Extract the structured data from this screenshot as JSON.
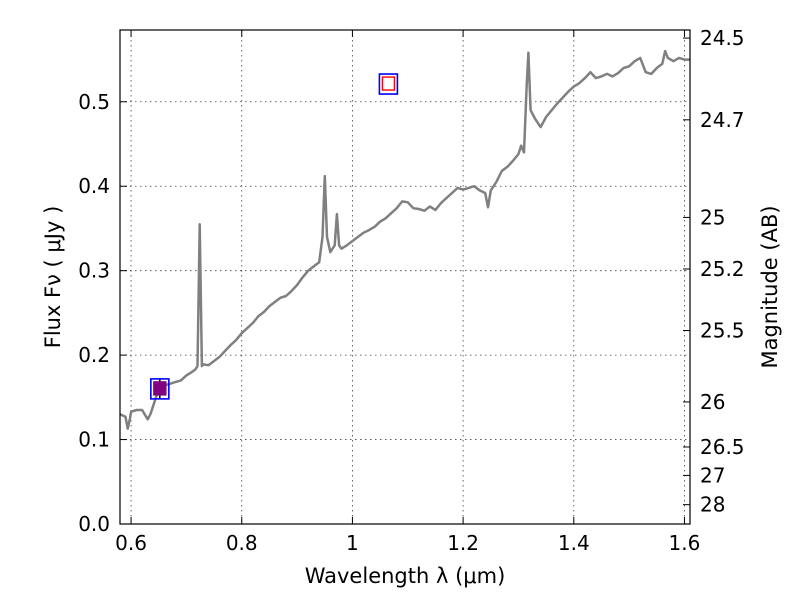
{
  "chart_data": {
    "type": "line",
    "xlabel": "Wavelength  λ (μm)",
    "ylabel": "Flux  Fν  ( μJy )",
    "ylabel_right": "Magnitude (AB)",
    "xlim": [
      0.58,
      1.61
    ],
    "ylim": [
      0.0,
      0.585
    ],
    "grid": true,
    "x_ticks": [
      {
        "value": 0.6,
        "label": "0.6"
      },
      {
        "value": 0.8,
        "label": "0.8"
      },
      {
        "value": 1.0,
        "label": "1"
      },
      {
        "value": 1.2,
        "label": "1.2"
      },
      {
        "value": 1.4,
        "label": "1.4"
      },
      {
        "value": 1.6,
        "label": "1.6"
      }
    ],
    "y_ticks": [
      {
        "value": 0.0,
        "label": "0.0"
      },
      {
        "value": 0.1,
        "label": "0.1"
      },
      {
        "value": 0.2,
        "label": "0.2"
      },
      {
        "value": 0.3,
        "label": "0.3"
      },
      {
        "value": 0.4,
        "label": "0.4"
      },
      {
        "value": 0.5,
        "label": "0.5"
      }
    ],
    "right_ticks": [
      {
        "mag": 24.5,
        "label": "24.5"
      },
      {
        "mag": 24.7,
        "label": "24.7"
      },
      {
        "mag": 25.0,
        "label": "25"
      },
      {
        "mag": 25.2,
        "label": "25.2"
      },
      {
        "mag": 25.5,
        "label": "25.5"
      },
      {
        "mag": 26.0,
        "label": "26"
      },
      {
        "mag": 26.5,
        "label": "26.5"
      },
      {
        "mag": 27.0,
        "label": "27"
      },
      {
        "mag": 28.0,
        "label": "28"
      }
    ],
    "series": [
      {
        "color": "#808080",
        "points": [
          [
            0.58,
            0.13
          ],
          [
            0.59,
            0.127
          ],
          [
            0.594,
            0.113
          ],
          [
            0.598,
            0.125
          ],
          [
            0.6,
            0.133
          ],
          [
            0.61,
            0.135
          ],
          [
            0.62,
            0.135
          ],
          [
            0.63,
            0.124
          ],
          [
            0.635,
            0.13
          ],
          [
            0.64,
            0.14
          ],
          [
            0.65,
            0.16
          ],
          [
            0.66,
            0.164
          ],
          [
            0.67,
            0.166
          ],
          [
            0.68,
            0.168
          ],
          [
            0.69,
            0.17
          ],
          [
            0.7,
            0.176
          ],
          [
            0.71,
            0.18
          ],
          [
            0.716,
            0.183
          ],
          [
            0.72,
            0.187
          ],
          [
            0.724,
            0.355
          ],
          [
            0.728,
            0.187
          ],
          [
            0.73,
            0.189
          ],
          [
            0.74,
            0.188
          ],
          [
            0.75,
            0.193
          ],
          [
            0.76,
            0.198
          ],
          [
            0.77,
            0.205
          ],
          [
            0.78,
            0.212
          ],
          [
            0.79,
            0.218
          ],
          [
            0.8,
            0.226
          ],
          [
            0.81,
            0.232
          ],
          [
            0.82,
            0.238
          ],
          [
            0.83,
            0.246
          ],
          [
            0.84,
            0.251
          ],
          [
            0.85,
            0.258
          ],
          [
            0.86,
            0.263
          ],
          [
            0.87,
            0.268
          ],
          [
            0.88,
            0.27
          ],
          [
            0.89,
            0.276
          ],
          [
            0.9,
            0.283
          ],
          [
            0.91,
            0.292
          ],
          [
            0.92,
            0.3
          ],
          [
            0.93,
            0.305
          ],
          [
            0.94,
            0.31
          ],
          [
            0.946,
            0.34
          ],
          [
            0.95,
            0.412
          ],
          [
            0.954,
            0.34
          ],
          [
            0.96,
            0.322
          ],
          [
            0.968,
            0.33
          ],
          [
            0.972,
            0.367
          ],
          [
            0.976,
            0.33
          ],
          [
            0.98,
            0.326
          ],
          [
            0.99,
            0.33
          ],
          [
            1.0,
            0.335
          ],
          [
            1.01,
            0.34
          ],
          [
            1.02,
            0.345
          ],
          [
            1.03,
            0.348
          ],
          [
            1.04,
            0.352
          ],
          [
            1.05,
            0.358
          ],
          [
            1.06,
            0.362
          ],
          [
            1.07,
            0.368
          ],
          [
            1.08,
            0.374
          ],
          [
            1.09,
            0.382
          ],
          [
            1.1,
            0.381
          ],
          [
            1.11,
            0.374
          ],
          [
            1.12,
            0.373
          ],
          [
            1.13,
            0.371
          ],
          [
            1.14,
            0.376
          ],
          [
            1.15,
            0.372
          ],
          [
            1.16,
            0.38
          ],
          [
            1.17,
            0.386
          ],
          [
            1.18,
            0.392
          ],
          [
            1.19,
            0.398
          ],
          [
            1.2,
            0.396
          ],
          [
            1.21,
            0.398
          ],
          [
            1.22,
            0.4
          ],
          [
            1.23,
            0.395
          ],
          [
            1.24,
            0.392
          ],
          [
            1.245,
            0.375
          ],
          [
            1.25,
            0.395
          ],
          [
            1.26,
            0.405
          ],
          [
            1.27,
            0.418
          ],
          [
            1.28,
            0.423
          ],
          [
            1.29,
            0.43
          ],
          [
            1.3,
            0.438
          ],
          [
            1.305,
            0.448
          ],
          [
            1.31,
            0.44
          ],
          [
            1.315,
            0.52
          ],
          [
            1.318,
            0.558
          ],
          [
            1.322,
            0.49
          ],
          [
            1.33,
            0.48
          ],
          [
            1.34,
            0.47
          ],
          [
            1.35,
            0.482
          ],
          [
            1.36,
            0.49
          ],
          [
            1.37,
            0.498
          ],
          [
            1.38,
            0.505
          ],
          [
            1.39,
            0.512
          ],
          [
            1.4,
            0.518
          ],
          [
            1.41,
            0.522
          ],
          [
            1.42,
            0.528
          ],
          [
            1.43,
            0.535
          ],
          [
            1.44,
            0.528
          ],
          [
            1.45,
            0.53
          ],
          [
            1.46,
            0.533
          ],
          [
            1.47,
            0.53
          ],
          [
            1.48,
            0.534
          ],
          [
            1.49,
            0.54
          ],
          [
            1.5,
            0.542
          ],
          [
            1.51,
            0.548
          ],
          [
            1.52,
            0.552
          ],
          [
            1.53,
            0.535
          ],
          [
            1.54,
            0.533
          ],
          [
            1.55,
            0.54
          ],
          [
            1.56,
            0.545
          ],
          [
            1.565,
            0.56
          ],
          [
            1.57,
            0.552
          ],
          [
            1.58,
            0.548
          ],
          [
            1.59,
            0.552
          ],
          [
            1.6,
            0.55
          ],
          [
            1.61,
            0.55
          ]
        ]
      }
    ],
    "markers": [
      {
        "x": 1.065,
        "y": 0.521,
        "outer": "#0000ff",
        "inner": "#ff0000",
        "filled": false
      },
      {
        "x": 0.652,
        "y": 0.16,
        "outer": "#0000ff",
        "inner": "#800080",
        "filled": true,
        "yerr": 0.012
      }
    ]
  }
}
